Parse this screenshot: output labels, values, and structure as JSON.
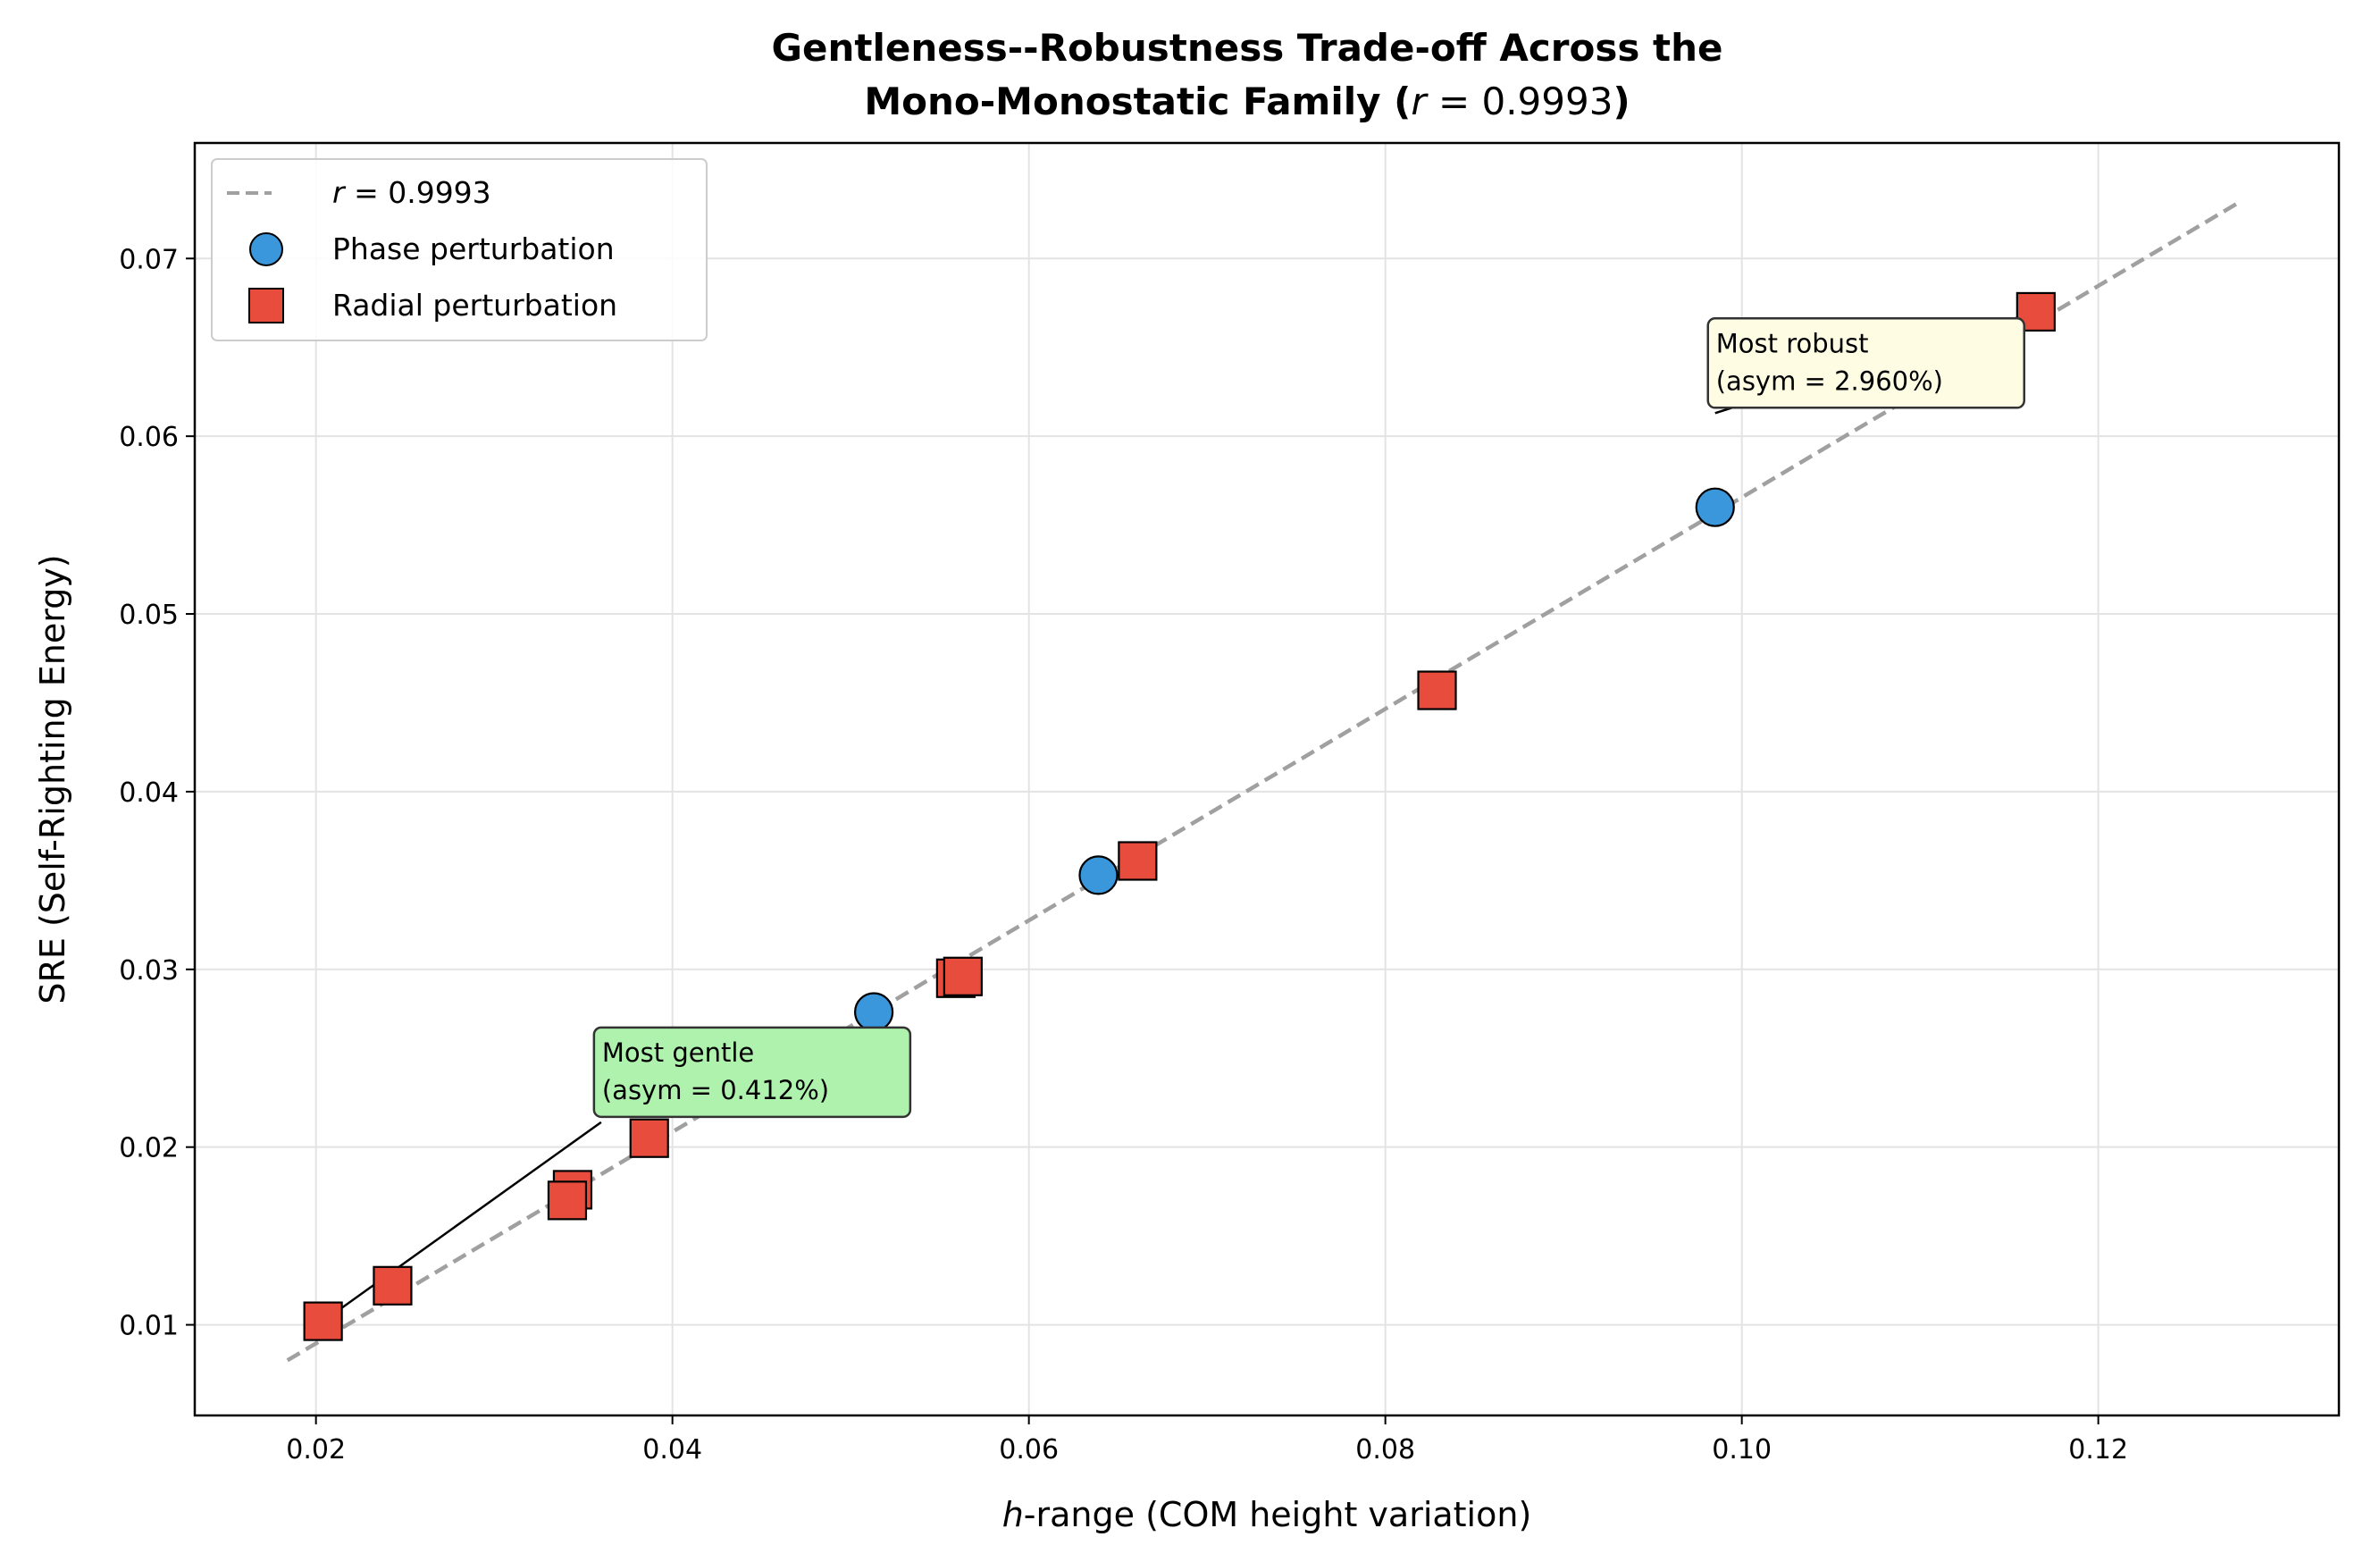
{
  "chart_data": {
    "type": "scatter",
    "title_line1": "Gentleness--Robustness Trade-off Across the",
    "title_line2_prefix": "Mono-Monostatic Family (",
    "title_line2_r": "r",
    "title_line2_value": " = 0.9993",
    "title_line2_suffix": ")",
    "xlabel_var": "h",
    "xlabel_rest": "-range (COM height variation)",
    "ylabel": "SRE (Self-Righting Energy)",
    "xlim": [
      0.0132,
      0.1335
    ],
    "ylim": [
      0.0049,
      0.0765
    ],
    "xticks": [
      0.02,
      0.04,
      0.06,
      0.08,
      0.1,
      0.12
    ],
    "xtick_labels": [
      "0.02",
      "0.04",
      "0.06",
      "0.08",
      "0.10",
      "0.12"
    ],
    "yticks": [
      0.01,
      0.02,
      0.03,
      0.04,
      0.05,
      0.06,
      0.07
    ],
    "ytick_labels": [
      "0.01",
      "0.02",
      "0.03",
      "0.04",
      "0.05",
      "0.06",
      "0.07"
    ],
    "grid": true,
    "legend_position": "upper-left",
    "fit_line": {
      "name_var": "r",
      "name_value": " = 0.9993",
      "x": [
        0.0184,
        0.1278
      ],
      "y": [
        0.008,
        0.0731
      ],
      "color": "#a0a0a0",
      "style": "dashed"
    },
    "series": [
      {
        "name": "Phase perturbation",
        "marker": "circle",
        "color": "#3a97dc",
        "points": [
          {
            "x": 0.0513,
            "y": 0.0276
          },
          {
            "x": 0.0639,
            "y": 0.0353
          },
          {
            "x": 0.0985,
            "y": 0.056
          }
        ]
      },
      {
        "name": "Radial perturbation",
        "marker": "square",
        "color": "#e84c3c",
        "points": [
          {
            "x": 0.0204,
            "y": 0.0102
          },
          {
            "x": 0.0243,
            "y": 0.0122
          },
          {
            "x": 0.0344,
            "y": 0.0176
          },
          {
            "x": 0.0341,
            "y": 0.017
          },
          {
            "x": 0.0387,
            "y": 0.0205
          },
          {
            "x": 0.0559,
            "y": 0.0295
          },
          {
            "x": 0.0563,
            "y": 0.0296
          },
          {
            "x": 0.0661,
            "y": 0.0361
          },
          {
            "x": 0.0829,
            "y": 0.0457
          },
          {
            "x": 0.1165,
            "y": 0.067
          }
        ]
      }
    ],
    "annotations": [
      {
        "line1": "Most gentle",
        "line2": "(asym = 0.412%)",
        "background": "#aef2ae",
        "point": {
          "x": 0.0204,
          "y": 0.0102
        },
        "anchor": {
          "x": 0.036,
          "y": 0.0214
        }
      },
      {
        "line1": "Most robust",
        "line2": "(asym = 2.960%)",
        "background": "#fefde4",
        "point": {
          "x": 0.1165,
          "y": 0.067
        },
        "anchor": {
          "x": 0.0985,
          "y": 0.0613
        }
      }
    ]
  }
}
